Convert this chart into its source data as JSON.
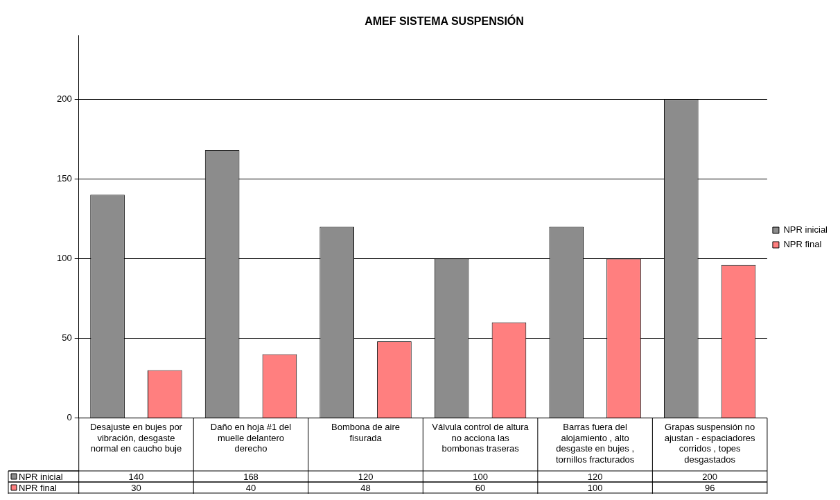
{
  "chart_data": {
    "type": "bar",
    "title": "AMEF SISTEMA SUSPENSIÓN",
    "categories": [
      "Desajuste en bujes por vibración, desgaste normal en caucho buje",
      "Daño en hoja #1 del muelle delantero derecho",
      "Bombona de aire fisurada",
      "Válvula control de altura no acciona las bombonas traseras",
      "Barras fuera del alojamiento , alto desgaste en bujes , tornillos fracturados",
      "Grapas suspensión no ajustan - espaciadores corridos , topes desgastados"
    ],
    "series": [
      {
        "name": "NPR inicial",
        "color": "#8c8c8c",
        "values": [
          140,
          168,
          120,
          100,
          120,
          200
        ]
      },
      {
        "name": "NPR final",
        "color": "#ff7f7f",
        "values": [
          30,
          40,
          48,
          60,
          100,
          96
        ]
      }
    ],
    "ylim": [
      0,
      240
    ],
    "yticks": [
      0,
      50,
      100,
      150,
      200
    ],
    "grid": "y",
    "legend": "right",
    "data_labels": true
  }
}
